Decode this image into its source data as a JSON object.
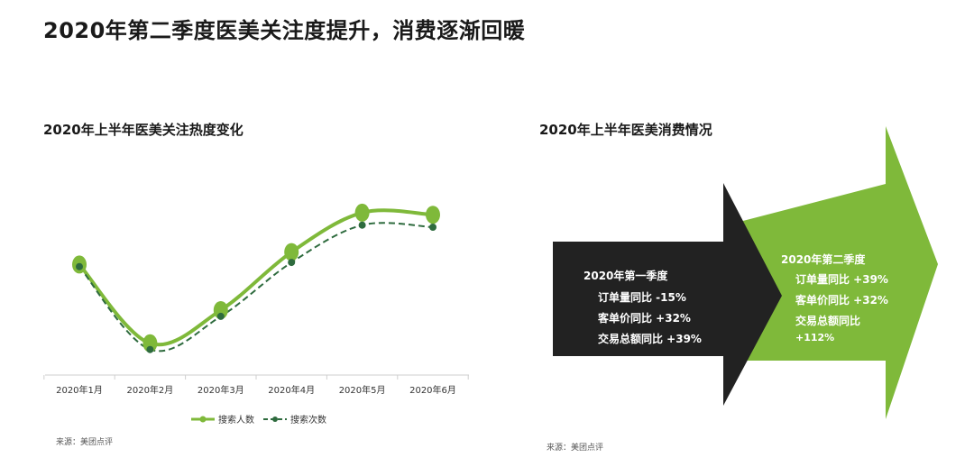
{
  "main_title": "2020年第二季度医美关注度提升，消费逐渐回暖",
  "colors": {
    "green": "#7fb93a",
    "dark_green": "#2e6b3e",
    "black_arrow": "#222222"
  },
  "left_panel": {
    "title": "2020年上半年医美关注热度变化",
    "source": "来源：美团点评"
  },
  "right_panel": {
    "title": "2020年上半年医美消费情况",
    "source": "来源：美团点评",
    "q1": {
      "heading": "2020年第一季度",
      "lines": [
        "订单量同比 -15%",
        "客单价同比 +32%",
        "交易总额同比 +39%"
      ]
    },
    "q2": {
      "heading": "2020年第二季度",
      "lines": [
        "订单量同比 +39%",
        "客单价同比 +32%",
        "交易总额同比",
        "+112%"
      ]
    }
  },
  "chart_data": {
    "type": "line",
    "title": "2020年上半年医美关注热度变化",
    "categories": [
      "2020年1月",
      "2020年2月",
      "2020年3月",
      "2020年4月",
      "2020年5月",
      "2020年6月"
    ],
    "series": [
      {
        "name": "搜索人数",
        "values": [
          62,
          24,
          40,
          68,
          87,
          86
        ]
      },
      {
        "name": "搜索次数",
        "values": [
          61,
          21,
          37,
          63,
          81,
          80
        ]
      }
    ],
    "ylim": [
      0,
      100
    ],
    "grid": false,
    "legend": "bottom"
  }
}
